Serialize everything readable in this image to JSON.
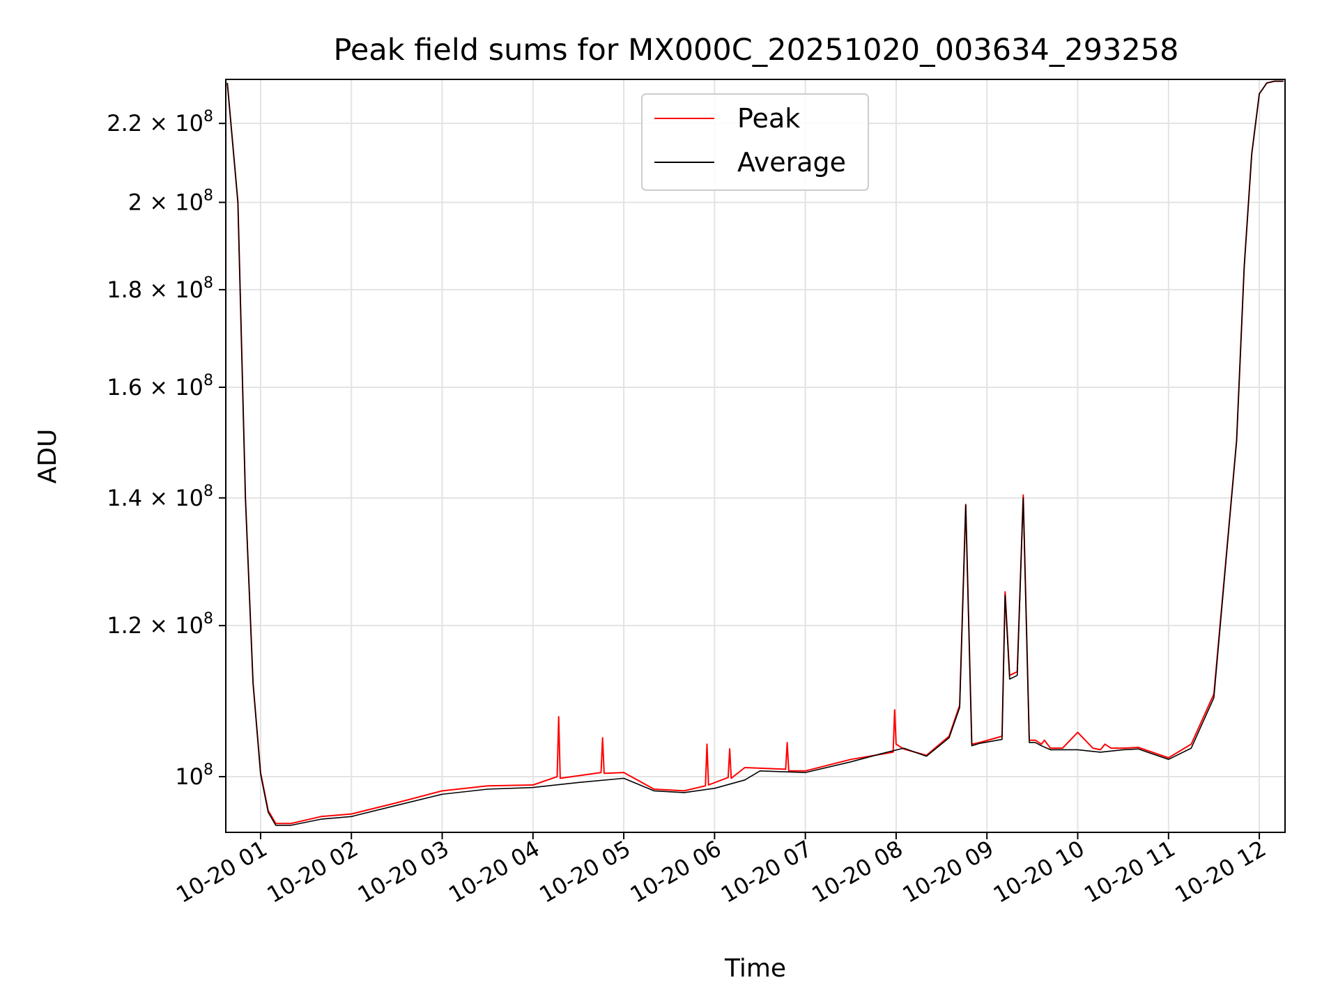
{
  "chart_data": {
    "type": "line",
    "title": "Peak field sums for MX000C_20251020_003634_293258",
    "xlabel": "Time",
    "ylabel": "ADU",
    "yscale": "log",
    "grid": true,
    "legend_placement": "upper-center",
    "xlim": [
      "2025-10-20 00:37",
      "2025-10-20 12:17"
    ],
    "ylim": [
      93500000,
      232000000
    ],
    "x_ticks": [
      {
        "value": "2025-10-20 01:00",
        "label": "10-20 01"
      },
      {
        "value": "2025-10-20 02:00",
        "label": "10-20 02"
      },
      {
        "value": "2025-10-20 03:00",
        "label": "10-20 03"
      },
      {
        "value": "2025-10-20 04:00",
        "label": "10-20 04"
      },
      {
        "value": "2025-10-20 05:00",
        "label": "10-20 05"
      },
      {
        "value": "2025-10-20 06:00",
        "label": "10-20 06"
      },
      {
        "value": "2025-10-20 07:00",
        "label": "10-20 07"
      },
      {
        "value": "2025-10-20 08:00",
        "label": "10-20 08"
      },
      {
        "value": "2025-10-20 09:00",
        "label": "10-20 09"
      },
      {
        "value": "2025-10-20 10:00",
        "label": "10-20 10"
      },
      {
        "value": "2025-10-20 11:00",
        "label": "10-20 11"
      },
      {
        "value": "2025-10-20 12:00",
        "label": "10-20 12"
      }
    ],
    "y_ticks": [
      {
        "value": 100000000,
        "mantissa": "",
        "exp": "8"
      },
      {
        "value": 120000000,
        "mantissa": "1.2",
        "exp": "8"
      },
      {
        "value": 140000000,
        "mantissa": "1.4",
        "exp": "8"
      },
      {
        "value": 160000000,
        "mantissa": "1.6",
        "exp": "8"
      },
      {
        "value": 180000000,
        "mantissa": "1.8",
        "exp": "8"
      },
      {
        "value": 200000000,
        "mantissa": "2",
        "exp": "8"
      },
      {
        "value": 220000000,
        "mantissa": "2.2",
        "exp": "8"
      }
    ],
    "series": [
      {
        "name": "Peak",
        "color": "#ff0000",
        "x": [
          "2025-10-20 00:38",
          "2025-10-20 00:45",
          "2025-10-20 00:50",
          "2025-10-20 00:55",
          "2025-10-20 01:00",
          "2025-10-20 01:05",
          "2025-10-20 01:10",
          "2025-10-20 01:20",
          "2025-10-20 01:40",
          "2025-10-20 02:00",
          "2025-10-20 02:30",
          "2025-10-20 03:00",
          "2025-10-20 03:30",
          "2025-10-20 04:00",
          "2025-10-20 04:16",
          "2025-10-20 04:17",
          "2025-10-20 04:18",
          "2025-10-20 04:45",
          "2025-10-20 04:46",
          "2025-10-20 04:47",
          "2025-10-20 05:00",
          "2025-10-20 05:20",
          "2025-10-20 05:40",
          "2025-10-20 05:54",
          "2025-10-20 05:55",
          "2025-10-20 05:56",
          "2025-10-20 06:09",
          "2025-10-20 06:10",
          "2025-10-20 06:11",
          "2025-10-20 06:20",
          "2025-10-20 06:47",
          "2025-10-20 06:48",
          "2025-10-20 06:49",
          "2025-10-20 07:00",
          "2025-10-20 07:30",
          "2025-10-20 07:58",
          "2025-10-20 07:59",
          "2025-10-20 08:00",
          "2025-10-20 08:05",
          "2025-10-20 08:20",
          "2025-10-20 08:35",
          "2025-10-20 08:42",
          "2025-10-20 08:46",
          "2025-10-20 08:50",
          "2025-10-20 08:55",
          "2025-10-20 09:10",
          "2025-10-20 09:12",
          "2025-10-20 09:15",
          "2025-10-20 09:20",
          "2025-10-20 09:24",
          "2025-10-20 09:28",
          "2025-10-20 09:32",
          "2025-10-20 09:36",
          "2025-10-20 09:38",
          "2025-10-20 09:42",
          "2025-10-20 09:50",
          "2025-10-20 10:00",
          "2025-10-20 10:10",
          "2025-10-20 10:15",
          "2025-10-20 10:18",
          "2025-10-20 10:22",
          "2025-10-20 10:30",
          "2025-10-20 10:40",
          "2025-10-20 11:00",
          "2025-10-20 11:15",
          "2025-10-20 11:30",
          "2025-10-20 11:45",
          "2025-10-20 11:50",
          "2025-10-20 11:55",
          "2025-10-20 12:00",
          "2025-10-20 12:05",
          "2025-10-20 12:10",
          "2025-10-20 12:16"
        ],
        "values": [
          231000000,
          200000000,
          140000000,
          112000000,
          100500000,
          96000000,
          94500000,
          94500000,
          95300000,
          95600000,
          96900000,
          98300000,
          98900000,
          99000000,
          100000000,
          107500000,
          99800000,
          100500000,
          104800000,
          100400000,
          100500000,
          98500000,
          98300000,
          98900000,
          104000000,
          99000000,
          99900000,
          103400000,
          99800000,
          101100000,
          100900000,
          104200000,
          100700000,
          100700000,
          102100000,
          103000000,
          108400000,
          104000000,
          103400000,
          102600000,
          105000000,
          109000000,
          138900000,
          104000000,
          104200000,
          105000000,
          125000000,
          113000000,
          113500000,
          140500000,
          104500000,
          104500000,
          104000000,
          104500000,
          103500000,
          103500000,
          105500000,
          103500000,
          103300000,
          104000000,
          103500000,
          103500000,
          103600000,
          102300000,
          104000000,
          110500000,
          150000000,
          185000000,
          212000000,
          228000000,
          231000000,
          231500000,
          231500000
        ]
      },
      {
        "name": "Average",
        "color": "#000000",
        "x": [
          "2025-10-20 00:38",
          "2025-10-20 00:45",
          "2025-10-20 00:50",
          "2025-10-20 00:55",
          "2025-10-20 01:00",
          "2025-10-20 01:05",
          "2025-10-20 01:10",
          "2025-10-20 01:20",
          "2025-10-20 01:40",
          "2025-10-20 02:00",
          "2025-10-20 02:30",
          "2025-10-20 03:00",
          "2025-10-20 03:30",
          "2025-10-20 04:00",
          "2025-10-20 04:30",
          "2025-10-20 05:00",
          "2025-10-20 05:20",
          "2025-10-20 05:40",
          "2025-10-20 06:00",
          "2025-10-20 06:20",
          "2025-10-20 06:30",
          "2025-10-20 07:00",
          "2025-10-20 07:30",
          "2025-10-20 07:50",
          "2025-10-20 08:05",
          "2025-10-20 08:20",
          "2025-10-20 08:35",
          "2025-10-20 08:42",
          "2025-10-20 08:46",
          "2025-10-20 08:50",
          "2025-10-20 08:55",
          "2025-10-20 09:10",
          "2025-10-20 09:12",
          "2025-10-20 09:15",
          "2025-10-20 09:20",
          "2025-10-20 09:24",
          "2025-10-20 09:28",
          "2025-10-20 09:32",
          "2025-10-20 09:36",
          "2025-10-20 09:42",
          "2025-10-20 09:50",
          "2025-10-20 10:00",
          "2025-10-20 10:15",
          "2025-10-20 10:30",
          "2025-10-20 10:40",
          "2025-10-20 11:00",
          "2025-10-20 11:15",
          "2025-10-20 11:30",
          "2025-10-20 11:45",
          "2025-10-20 11:50",
          "2025-10-20 11:55",
          "2025-10-20 12:00",
          "2025-10-20 12:05",
          "2025-10-20 12:10",
          "2025-10-20 12:16"
        ],
        "values": [
          231000000,
          200000000,
          140000000,
          112000000,
          100300000,
          95800000,
          94300000,
          94300000,
          95000000,
          95300000,
          96600000,
          97900000,
          98500000,
          98700000,
          99300000,
          99800000,
          98300000,
          98100000,
          98600000,
          99600000,
          100700000,
          100500000,
          101800000,
          102800000,
          103500000,
          102500000,
          104800000,
          108700000,
          138800000,
          103800000,
          104100000,
          104600000,
          124500000,
          112500000,
          113000000,
          140000000,
          104200000,
          104200000,
          103800000,
          103300000,
          103300000,
          103300000,
          103000000,
          103300000,
          103400000,
          102100000,
          103500000,
          110000000,
          150000000,
          185000000,
          212000000,
          228000000,
          231000000,
          231500000,
          231500000
        ]
      }
    ]
  }
}
